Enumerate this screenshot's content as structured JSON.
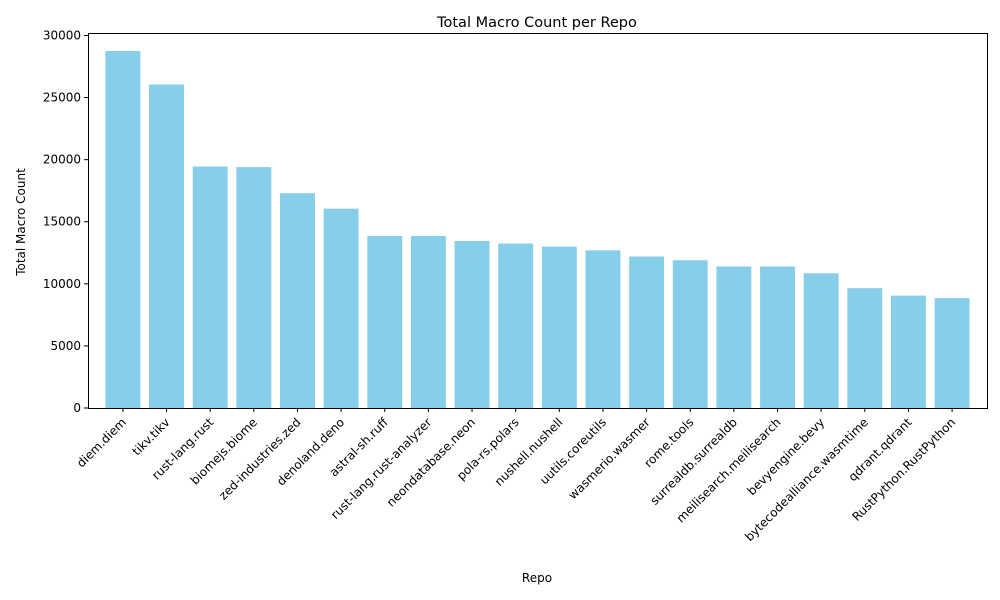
{
  "chart_data": {
    "type": "bar",
    "title": "Total Macro Count per Repo",
    "xlabel": "Repo",
    "ylabel": "Total Macro Count",
    "ylim": [
      0,
      30200
    ],
    "yticks": [
      0,
      5000,
      10000,
      15000,
      20000,
      25000,
      30000
    ],
    "categories": [
      "diem.diem",
      "tikv.tikv",
      "rust-lang.rust",
      "biomejs.biome",
      "zed-industries.zed",
      "denoland.deno",
      "astral-sh.ruff",
      "rust-lang.rust-analyzer",
      "neondatabase.neon",
      "pola-rs.polars",
      "nushell.nushell",
      "uutils.coreutils",
      "wasmerio.wasmer",
      "rome.tools",
      "surrealdb.surrealdb",
      "meilisearch.meilisearch",
      "bevyengine.bevy",
      "bytecodealliance.wasmtime",
      "qdrant.qdrant",
      "RustPython.RustPython"
    ],
    "values": [
      28750,
      26050,
      19450,
      19400,
      17300,
      16050,
      13850,
      13850,
      13450,
      13250,
      13000,
      12700,
      12200,
      11900,
      11400,
      11400,
      10850,
      9650,
      9050,
      8850
    ],
    "bar_color": "#87ceeb",
    "grid": false,
    "legend": "none"
  }
}
